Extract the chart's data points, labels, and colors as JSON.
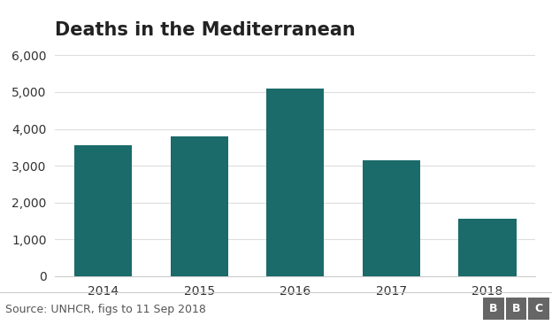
{
  "title": "Deaths in the Mediterranean",
  "categories": [
    "2014",
    "2015",
    "2016",
    "2017",
    "2018"
  ],
  "values": [
    3560,
    3800,
    5100,
    3150,
    1550
  ],
  "bar_color": "#1a6b6a",
  "ylim": [
    0,
    6000
  ],
  "yticks": [
    0,
    1000,
    2000,
    3000,
    4000,
    5000,
    6000
  ],
  "source_text": "Source: UNHCR, figs to 11 Sep 2018",
  "bbc_label": "BBC",
  "background_color": "#ffffff",
  "title_fontsize": 15,
  "tick_fontsize": 10,
  "source_fontsize": 9,
  "bar_width": 0.6,
  "grid_color": "#dddddd",
  "bottom_line_color": "#cccccc",
  "bbc_bg_color": "#666666",
  "source_color": "#555555"
}
